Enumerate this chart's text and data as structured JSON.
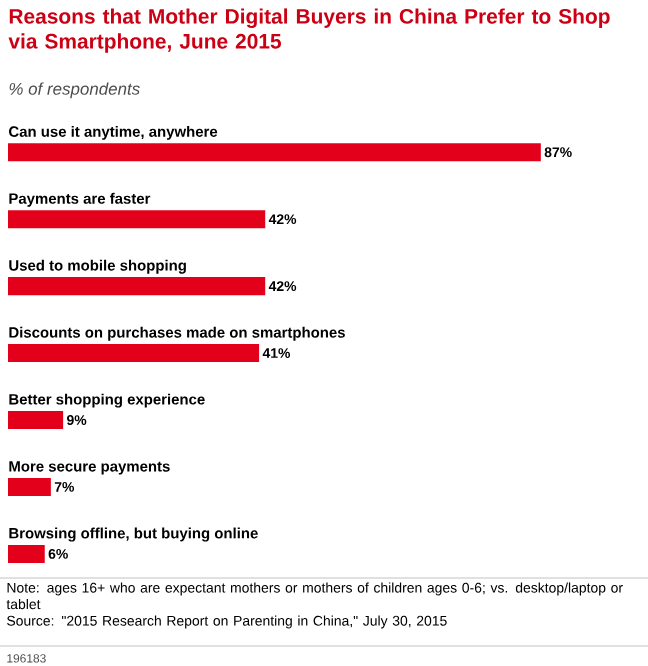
{
  "chart_data": {
    "type": "bar",
    "orientation": "horizontal",
    "title": "Reasons that Mother Digital Buyers in China Prefer to Shop via Smartphone, June 2015",
    "subtitle": "% of respondents",
    "categories": [
      "Can use it anytime, anywhere",
      "Payments are faster",
      "Used to mobile shopping",
      "Discounts on purchases made on smartphones",
      "Better shopping experience",
      "More secure payments",
      "Browsing offline, but buying online"
    ],
    "values": [
      87,
      42,
      42,
      41,
      9,
      7,
      6
    ],
    "value_labels": [
      "87%",
      "42%",
      "42%",
      "41%",
      "9%",
      "7%",
      "6%"
    ],
    "color": "#e2001a",
    "annotations": [
      "Note: ages 16+ who are expectant mothers or mothers of children ages 0-6; vs. desktop/laptop or tablet",
      "Source: \"2015 Research Report on Parenting in China,\" July 30, 2015",
      "196183"
    ]
  }
}
